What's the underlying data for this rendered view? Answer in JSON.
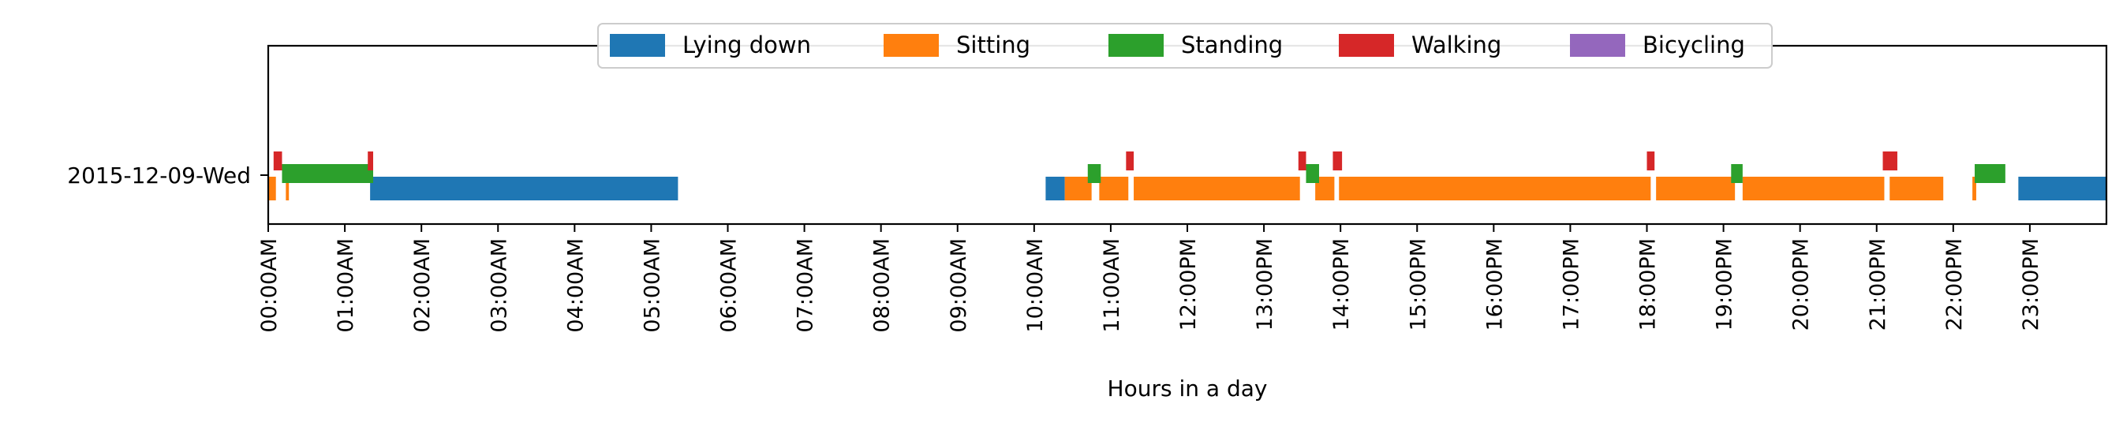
{
  "chart_data": {
    "type": "timeline",
    "xlabel": "Hours in a day",
    "ylabel": "",
    "title": "",
    "xlim": [
      0,
      24
    ],
    "x_ticks": [
      "00:00AM",
      "01:00AM",
      "02:00AM",
      "03:00AM",
      "04:00AM",
      "05:00AM",
      "06:00AM",
      "07:00AM",
      "08:00AM",
      "09:00AM",
      "10:00AM",
      "11:00AM",
      "12:00PM",
      "13:00PM",
      "14:00PM",
      "15:00PM",
      "16:00PM",
      "17:00PM",
      "18:00PM",
      "19:00PM",
      "20:00PM",
      "21:00PM",
      "22:00PM",
      "23:00PM"
    ],
    "categories": [
      "2015-12-09-Wed"
    ],
    "legend_position": "top-center",
    "series": [
      {
        "name": "Lying down",
        "color": "#1f77b4",
        "level": 0,
        "intervals": [
          [
            1.33,
            5.35
          ],
          [
            10.15,
            10.4
          ],
          [
            22.85,
            24.0
          ]
        ]
      },
      {
        "name": "Sitting",
        "color": "#ff7f0e",
        "level": 0,
        "intervals": [
          [
            0.0,
            0.1
          ],
          [
            0.23,
            0.27
          ],
          [
            10.4,
            10.75
          ],
          [
            10.85,
            11.23
          ],
          [
            11.3,
            13.47
          ],
          [
            13.67,
            13.92
          ],
          [
            13.98,
            18.05
          ],
          [
            18.12,
            19.15
          ],
          [
            19.25,
            21.1
          ],
          [
            21.17,
            21.87
          ],
          [
            22.25,
            22.3
          ]
        ]
      },
      {
        "name": "Standing",
        "color": "#2ca02c",
        "level": 1,
        "intervals": [
          [
            0.18,
            1.37
          ],
          [
            10.7,
            10.87
          ],
          [
            13.55,
            13.72
          ],
          [
            19.1,
            19.25
          ],
          [
            22.28,
            22.68
          ]
        ]
      },
      {
        "name": "Walking",
        "color": "#d62728",
        "level": 2,
        "intervals": [
          [
            0.07,
            0.18
          ],
          [
            1.3,
            1.37
          ],
          [
            11.2,
            11.3
          ],
          [
            13.45,
            13.55
          ],
          [
            13.9,
            14.02
          ],
          [
            18.0,
            18.1
          ],
          [
            21.08,
            21.27
          ]
        ]
      },
      {
        "name": "Bicycling",
        "color": "#9467bd",
        "level": 3,
        "intervals": []
      }
    ]
  }
}
